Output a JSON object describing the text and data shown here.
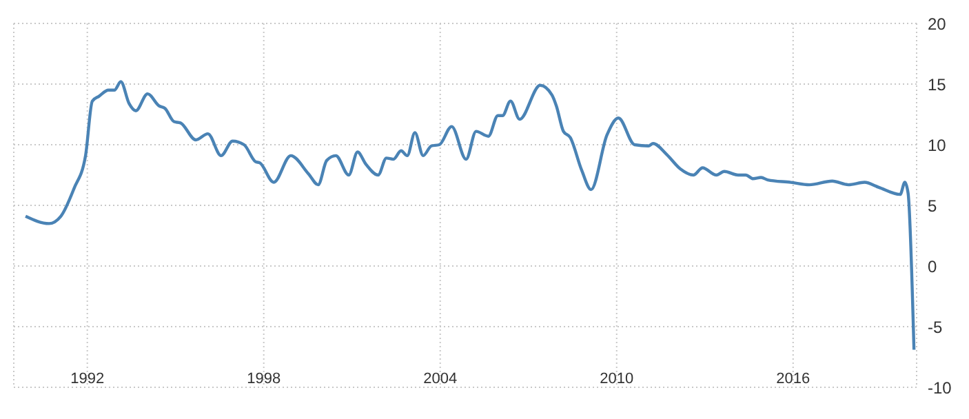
{
  "chart_data": {
    "type": "line",
    "xlim": [
      1989.5,
      2020.2
    ],
    "ylim": [
      -10,
      20
    ],
    "xticks": [
      1992,
      1998,
      2004,
      2010,
      2016
    ],
    "yticks": [
      -10,
      -5,
      0,
      5,
      10,
      15,
      20
    ],
    "grid": true,
    "x": [
      1989.9,
      1990.7,
      1991.1,
      1991.55,
      1991.94,
      1992.17,
      1992.4,
      1992.72,
      1992.92,
      1993.14,
      1993.42,
      1993.65,
      1994.05,
      1994.44,
      1994.64,
      1994.95,
      1995.17,
      1995.69,
      1996.1,
      1996.55,
      1996.94,
      1997.33,
      1997.72,
      1997.87,
      1998.34,
      1998.92,
      1999.52,
      1999.85,
      2000.14,
      2000.45,
      2000.89,
      2001.19,
      2001.47,
      2001.89,
      2002.17,
      2002.41,
      2002.67,
      2002.88,
      2003.14,
      2003.42,
      2003.7,
      2003.97,
      2004.39,
      2004.88,
      2005.22,
      2005.64,
      2005.96,
      2006.12,
      2006.39,
      2006.7,
      2007.4,
      2007.8,
      2007.95,
      2008.19,
      2008.42,
      2008.81,
      2009.13,
      2009.67,
      2010.06,
      2010.61,
      2011.08,
      2011.24,
      2011.7,
      2012.17,
      2012.61,
      2012.92,
      2013.39,
      2013.66,
      2014.13,
      2014.39,
      2014.64,
      2014.91,
      2015.14,
      2015.92,
      2016.55,
      2017.33,
      2017.88,
      2018.43,
      2018.9,
      2019.64,
      2019.8,
      2019.91,
      2020.11
    ],
    "series": [
      {
        "color": "#4a83b5",
        "values": [
          4.1,
          3.5,
          4.1,
          6.4,
          9.1,
          13.6,
          14.0,
          14.5,
          14.5,
          15.2,
          13.4,
          12.8,
          14.2,
          13.2,
          13.0,
          11.9,
          11.8,
          10.4,
          10.9,
          9.1,
          10.3,
          10.0,
          8.6,
          8.5,
          6.9,
          9.1,
          7.6,
          6.7,
          8.7,
          9.1,
          7.5,
          9.4,
          8.4,
          7.5,
          8.9,
          8.8,
          9.5,
          9.1,
          11.0,
          9.1,
          9.9,
          10.0,
          11.5,
          8.8,
          11.1,
          10.7,
          12.4,
          12.4,
          13.6,
          12.1,
          14.9,
          14.1,
          13.2,
          11.1,
          10.6,
          7.9,
          6.3,
          10.8,
          12.2,
          10.0,
          9.9,
          10.1,
          9.2,
          8.0,
          7.5,
          8.1,
          7.5,
          7.8,
          7.5,
          7.5,
          7.2,
          7.3,
          7.1,
          6.9,
          6.7,
          7.0,
          6.7,
          6.9,
          6.5,
          5.9,
          6.9,
          6.0,
          -6.9
        ]
      }
    ]
  }
}
